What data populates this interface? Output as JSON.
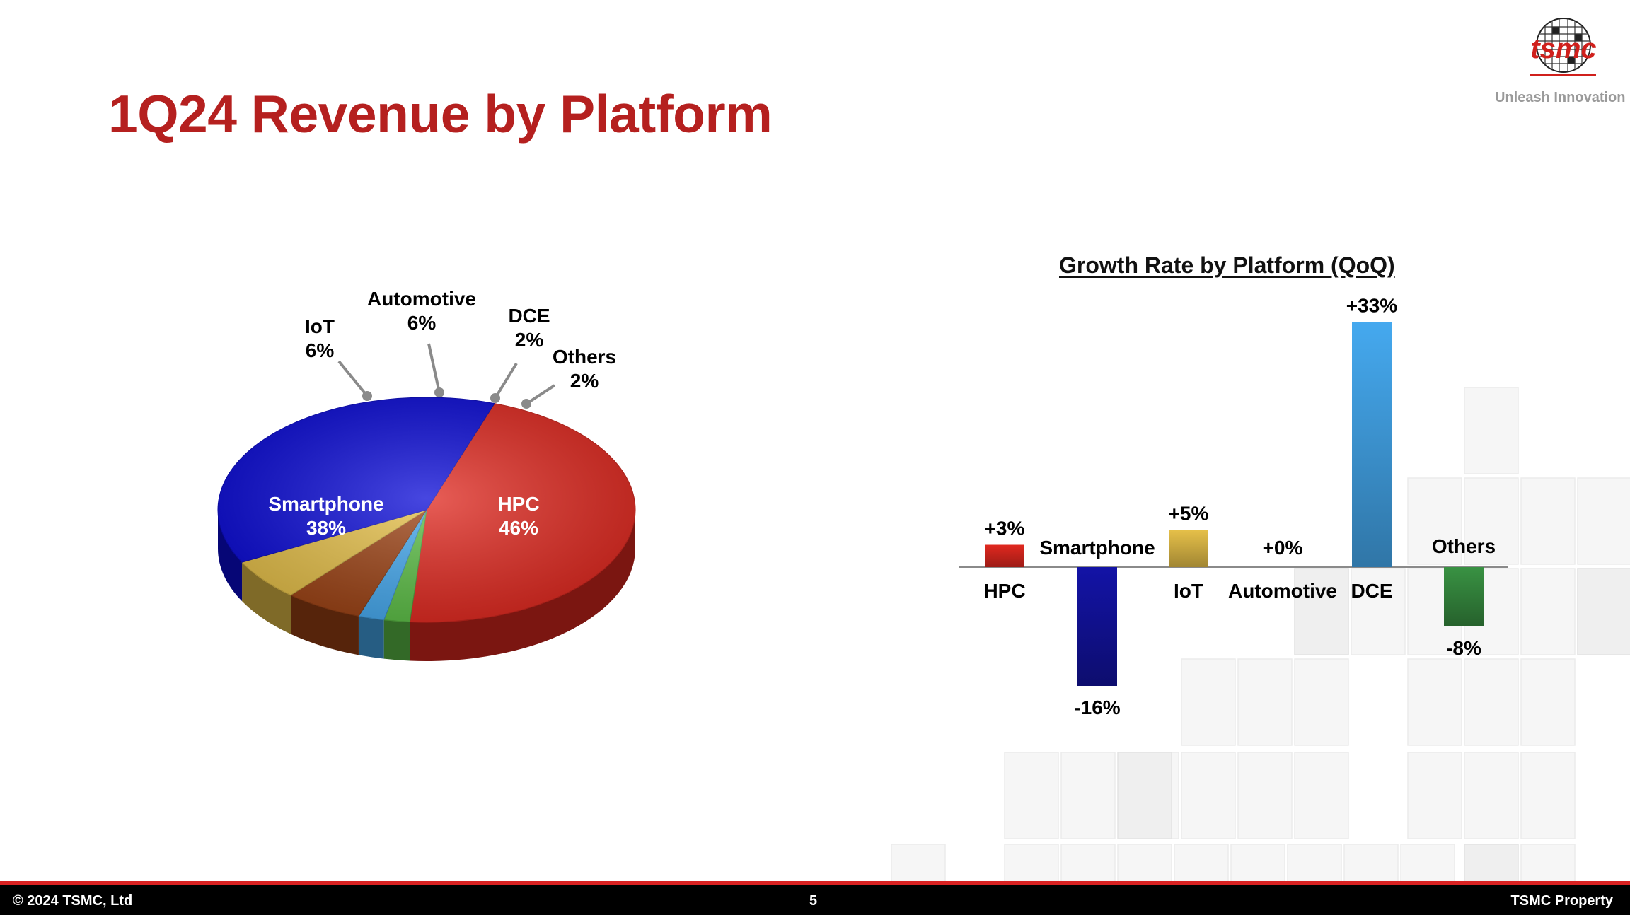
{
  "page": {
    "title": "1Q24 Revenue by Platform",
    "tagline": "Unleash Innovation",
    "logo_text": "tsmc"
  },
  "colors": {
    "title": "#b5201f",
    "hpc": "#e0281f",
    "smartphone": "#0a0ad6",
    "iot": "#e6c049",
    "automotive": "#9c4214",
    "dce": "#45a9ef",
    "others": "#5cbf46"
  },
  "footer": {
    "copyright": "© 2024 TSMC, Ltd",
    "page_number": "5",
    "property": "TSMC Property"
  },
  "chart_data": [
    {
      "type": "pie",
      "title": "",
      "unit": "%",
      "slices": [
        {
          "name": "HPC",
          "value": 46,
          "label": "HPC",
          "value_label": "46%",
          "color": "#e0281f"
        },
        {
          "name": "Others",
          "value": 2,
          "label": "Others",
          "value_label": "2%",
          "color": "#5cbf46"
        },
        {
          "name": "DCE",
          "value": 2,
          "label": "DCE",
          "value_label": "2%",
          "color": "#45a9ef"
        },
        {
          "name": "Automotive",
          "value": 6,
          "label": "Automotive",
          "value_label": "6%",
          "color": "#9c4214"
        },
        {
          "name": "IoT",
          "value": 6,
          "label": "IoT",
          "value_label": "6%",
          "color": "#e6c049"
        },
        {
          "name": "Smartphone",
          "value": 38,
          "label": "Smartphone",
          "value_label": "38%",
          "color": "#0a0ad6"
        }
      ]
    },
    {
      "type": "bar",
      "title": "Growth Rate by Platform (QoQ)",
      "unit": "%",
      "ylim": [
        -16,
        33
      ],
      "bars": [
        {
          "category": "HPC",
          "value": 3,
          "value_label": "+3%",
          "color": "#e0281f"
        },
        {
          "category": "Smartphone",
          "value": -16,
          "value_label": "-16%",
          "color": "#1515b8"
        },
        {
          "category": "IoT",
          "value": 5,
          "value_label": "+5%",
          "color": "#e6c049"
        },
        {
          "category": "Automotive",
          "value": 0,
          "value_label": "+0%",
          "color": "#9c4214"
        },
        {
          "category": "DCE",
          "value": 33,
          "value_label": "+33%",
          "color": "#45a9ef"
        },
        {
          "category": "Others",
          "value": -8,
          "value_label": "-8%",
          "color": "#3fa24a"
        }
      ]
    }
  ]
}
